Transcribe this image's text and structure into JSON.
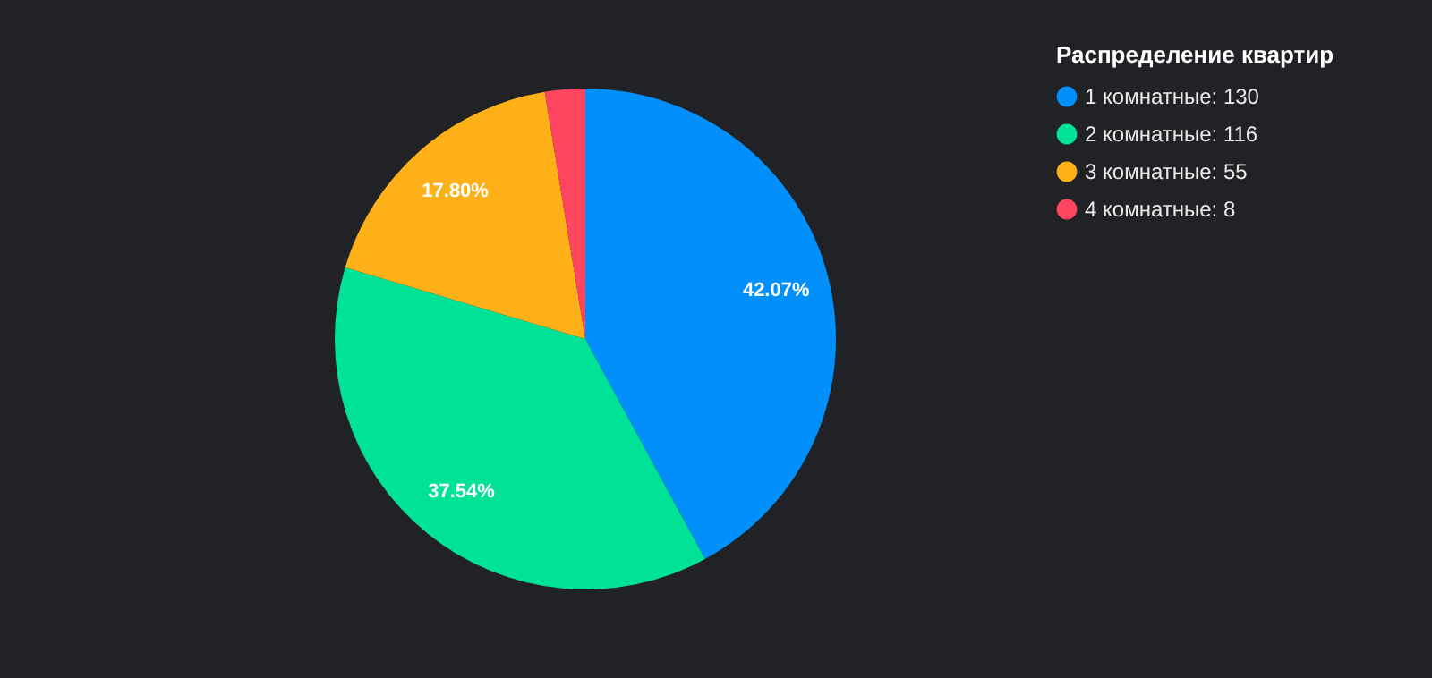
{
  "chart_data": {
    "type": "pie",
    "legend_title": "Распределение квартир",
    "legend": "top right",
    "categories": [
      "1 комнатные: 130",
      "2 комнатные: 116",
      "3 комнатные: 55",
      "4 комнатные: 8"
    ],
    "values": [
      42.07,
      37.54,
      17.8,
      2.59
    ],
    "colors": [
      "#008ffb",
      "#00e396",
      "#feb019",
      "#ff4560"
    ],
    "value_labels": [
      "42.07%",
      "37.54%",
      "17.80%",
      null
    ]
  }
}
